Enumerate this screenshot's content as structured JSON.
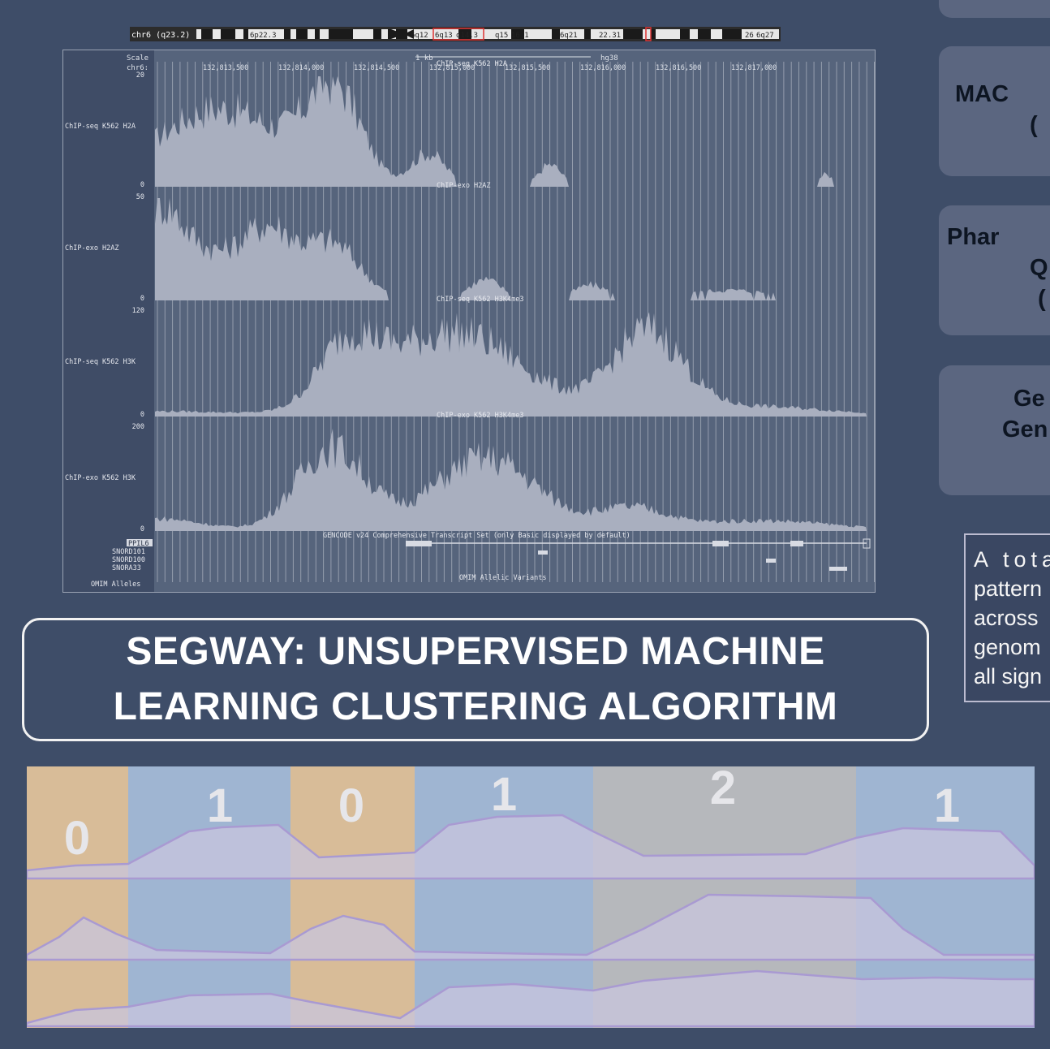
{
  "ideogram": {
    "labels": [
      "chr6 (q23.2)",
      "6p22.3",
      "6q12",
      "6q13",
      "q14.3",
      "q15",
      "16.1",
      "6q21",
      "22.31",
      "26",
      "6q27"
    ]
  },
  "browser": {
    "ruler": {
      "scale_label": "Scale",
      "chrom_label": "chr6:",
      "scale_text": "1 kb",
      "assembly": "hg38",
      "positions": [
        "132,813,500",
        "132,814,000",
        "132,814,500",
        "132,815,000",
        "132,815,500",
        "132,816,000",
        "132,816,500",
        "132,817,000"
      ]
    },
    "tracks": [
      {
        "title": "ChIP-seq K562 H2A",
        "side_label": "ChIP-seq K562 H2A",
        "max": "20",
        "min": "0"
      },
      {
        "title": "ChIP-exo H2AZ",
        "side_label": "ChIP-exo H2AZ",
        "max": "50",
        "min": "0"
      },
      {
        "title": "ChIP-seq K562 H3K4me3",
        "side_label": "ChIP-seq K562 H3K",
        "max": "120",
        "min": "0"
      },
      {
        "title": "ChIP-exo K562 H3K4me3",
        "side_label": "ChIP-exo K562 H3K",
        "max": "200",
        "min": "0"
      }
    ],
    "gencode_title": "GENCODE v24 Comprehensive Transcript Set (only Basic displayed by default)",
    "genes": [
      "PPIL6",
      "SNORD101",
      "SNORD100",
      "SNORA33"
    ],
    "omim_title": "OMIM Allelic Variants",
    "omim_label": "OMIM Alleles"
  },
  "segway": {
    "title_line1": "SEGWAY: UNSUPERVISED MACHINE",
    "title_line2": "LEARNING CLUSTERING ALGORITHM"
  },
  "segments": {
    "labels": [
      "0",
      "1",
      "0",
      "1",
      "2",
      "1"
    ],
    "colors": {
      "0": "#d8bc98",
      "1": "#9fb5d2",
      "2": "#b6b8bc",
      "signal": "#c8c6dd",
      "signal_line": "#a99ad2"
    }
  },
  "cards": [
    {
      "lines": [
        "MAC",
        "("
      ]
    },
    {
      "lines": [
        "Phar",
        "Q",
        "("
      ]
    },
    {
      "lines": [
        "Ge",
        "Gen"
      ]
    }
  ],
  "note": {
    "lines": [
      "A tota",
      "pattern",
      "across",
      "genom",
      "all sign"
    ]
  }
}
